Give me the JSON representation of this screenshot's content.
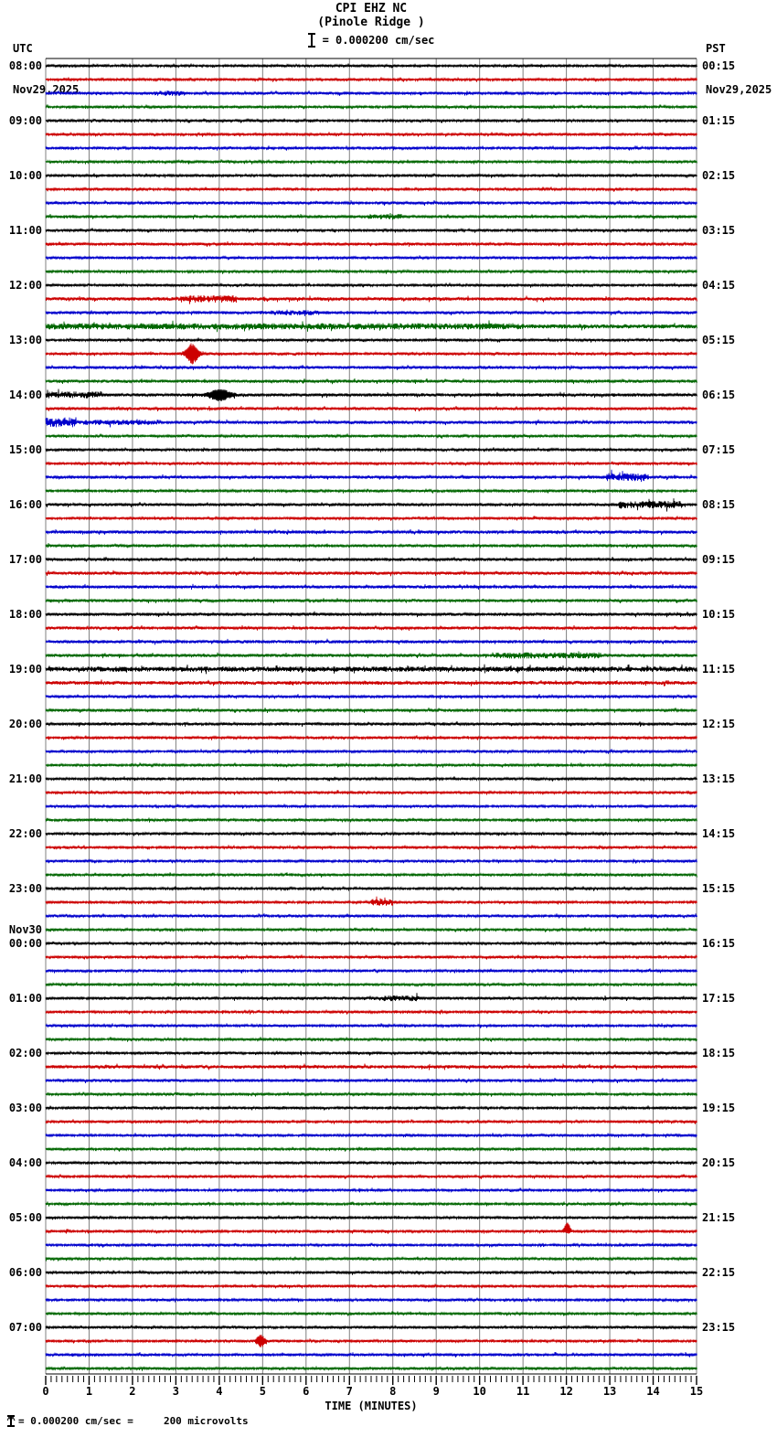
{
  "header": {
    "title": "CPI EHZ NC",
    "subtitle": "(Pinole Ridge )",
    "scale_label": "= 0.000200 cm/sec",
    "left_tz": "UTC",
    "left_date": "Nov29,2025",
    "right_tz": "PST",
    "right_date": "Nov29,2025"
  },
  "axis": {
    "label": "TIME (MINUTES)",
    "tick_labels": [
      "0",
      "1",
      "2",
      "3",
      "4",
      "5",
      "6",
      "7",
      "8",
      "9",
      "10",
      "11",
      "12",
      "13",
      "14",
      "15"
    ],
    "minutes": 15,
    "minor_ticks_per_minute": 8
  },
  "footer": {
    "note": "= 0.000200 cm/sec =     200 microvolts"
  },
  "palette": {
    "trace_cycle": [
      "#000000",
      "#cc0000",
      "#0000cc",
      "#006600"
    ],
    "grid": "#7f7f7f",
    "border": "#000000"
  },
  "chart_data": {
    "type": "line",
    "subtype": "helicorder-seismogram",
    "station": "CPI EHZ NC",
    "location": "Pinole Ridge",
    "scale": "0.000200 cm/sec = 200 microvolts",
    "minutes_per_line": 15,
    "traces_per_hour": 4,
    "hour_labels_utc": [
      "08:00",
      "09:00",
      "10:00",
      "11:00",
      "12:00",
      "13:00",
      "14:00",
      "15:00",
      "16:00",
      "17:00",
      "18:00",
      "19:00",
      "20:00",
      "21:00",
      "22:00",
      "23:00",
      "00:00",
      "01:00",
      "02:00",
      "03:00",
      "04:00",
      "05:00",
      "06:00",
      "07:00"
    ],
    "hour_labels_pst": [
      "00:15",
      "01:15",
      "02:15",
      "03:15",
      "04:15",
      "05:15",
      "06:15",
      "07:15",
      "08:15",
      "09:15",
      "10:15",
      "11:15",
      "12:15",
      "13:15",
      "14:15",
      "15:15",
      "16:15",
      "17:15",
      "18:15",
      "19:15",
      "20:15",
      "21:15",
      "22:15",
      "23:15"
    ],
    "date_rollover": {
      "text": "Nov30",
      "hour_index": 16
    },
    "row_amps": [
      1,
      1,
      1.1,
      1,
      1,
      1,
      1,
      1,
      1,
      1,
      1.1,
      1.1,
      1,
      1.1,
      1,
      1,
      1,
      1.3,
      1.15,
      1.6,
      1,
      1,
      1.1,
      1.2,
      1.2,
      1.1,
      1.2,
      1,
      1,
      1,
      1.15,
      1,
      1.1,
      1,
      1.2,
      1.1,
      1.1,
      1.2,
      1.2,
      1.1,
      1.2,
      1.1,
      1.2,
      1.2,
      2.0,
      1.4,
      1.1,
      1.1,
      1.1,
      1,
      1,
      1,
      1,
      1,
      1,
      1,
      1,
      1,
      1,
      1,
      1,
      1,
      1,
      1,
      1,
      1,
      1,
      1,
      1.1,
      1,
      1,
      1,
      1,
      1.3,
      1.1,
      1,
      1,
      1,
      1,
      1,
      1,
      1,
      1,
      1,
      1,
      1,
      1,
      1,
      1,
      1,
      1,
      1,
      1,
      1,
      1.1,
      1
    ],
    "events": [
      {
        "row": 2,
        "kind": "burst",
        "t0": 2.5,
        "t1": 3.2,
        "amp": 1.8
      },
      {
        "row": 11,
        "kind": "burst",
        "t0": 7.4,
        "t1": 8.2,
        "amp": 1.8
      },
      {
        "row": 17,
        "kind": "burst",
        "t0": 3.1,
        "t1": 4.4,
        "amp": 2.2
      },
      {
        "row": 18,
        "kind": "burst",
        "t0": 5.2,
        "t1": 6.3,
        "amp": 1.7
      },
      {
        "row": 19,
        "kind": "burst",
        "t0": 0,
        "t1": 11,
        "amp": 1.5
      },
      {
        "row": 21,
        "kind": "spike",
        "t": 3.37,
        "amp": 9,
        "w": 0.1
      },
      {
        "row": 24,
        "kind": "spike",
        "t": 4.0,
        "amp": 5,
        "w": 0.18
      },
      {
        "row": 24,
        "kind": "burst",
        "t0": 0,
        "t1": 1.3,
        "amp": 2.2
      },
      {
        "row": 26,
        "kind": "burst",
        "t0": 0,
        "t1": 0.7,
        "amp": 3.2
      },
      {
        "row": 26,
        "kind": "burst",
        "t0": 0.7,
        "t1": 2.6,
        "amp": 1.7
      },
      {
        "row": 30,
        "kind": "burst",
        "t0": 12.9,
        "t1": 13.9,
        "amp": 2.6
      },
      {
        "row": 32,
        "kind": "burst",
        "t0": 13.2,
        "t1": 14.7,
        "amp": 2.6
      },
      {
        "row": 43,
        "kind": "burst",
        "t0": 10.3,
        "t1": 12.8,
        "amp": 2.0
      },
      {
        "row": 61,
        "kind": "burst",
        "t0": 7.5,
        "t1": 8.0,
        "amp": 2.6
      },
      {
        "row": 68,
        "kind": "burst",
        "t0": 7.7,
        "t1": 8.6,
        "amp": 2.0
      },
      {
        "row": 85,
        "kind": "spike",
        "t": 12.02,
        "amp": 9,
        "w": 0.05,
        "up_only": true
      },
      {
        "row": 93,
        "kind": "spike",
        "t": 4.95,
        "amp": 5.5,
        "w": 0.07
      }
    ]
  }
}
